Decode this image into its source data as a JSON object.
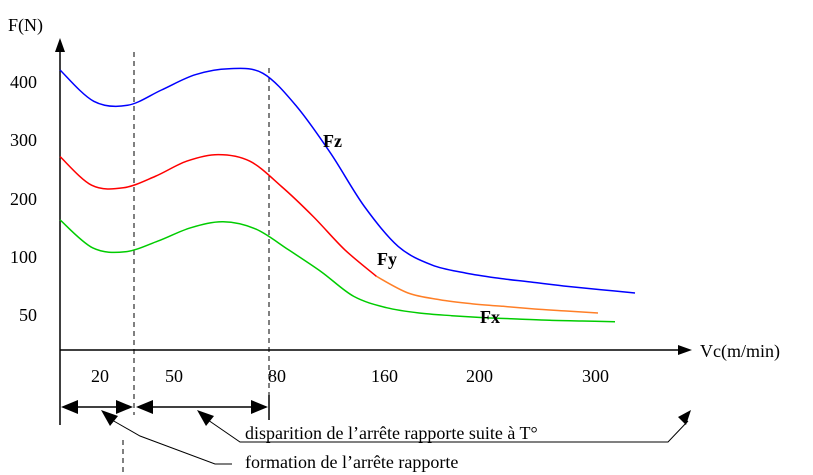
{
  "chart_data": {
    "type": "line",
    "ylabel": "F(N)",
    "xlabel": "Vc(m/min)",
    "x_ticks": [
      "20",
      "50",
      "80",
      "160",
      "200",
      "300"
    ],
    "y_ticks": [
      400,
      300,
      200,
      100,
      50
    ],
    "ylim": [
      0,
      450
    ],
    "series": [
      {
        "name": "Fz",
        "color": "#0000ff",
        "values": [
          415,
          368,
          362,
          385,
          408,
          417,
          410,
          360,
          290,
          210,
          150,
          122,
          110,
          102,
          96,
          90,
          85,
          80
        ]
      },
      {
        "name": "Fy",
        "color": "#ff0000",
        "tail_color": "#ff7f27",
        "values": [
          285,
          242,
          238,
          255,
          278,
          288,
          278,
          240,
          195,
          145,
          105,
          80,
          70,
          64,
          60,
          56,
          53,
          50
        ]
      },
      {
        "name": "Fx",
        "color": "#00cc00",
        "values": [
          190,
          148,
          142,
          158,
          178,
          187,
          176,
          145,
          112,
          75,
          58,
          50,
          46,
          43,
          41,
          39,
          38,
          37
        ]
      }
    ],
    "annotations": [
      "disparition de l’arrête rapporte suite à T°",
      "formation de l’arrête rapporte"
    ]
  }
}
